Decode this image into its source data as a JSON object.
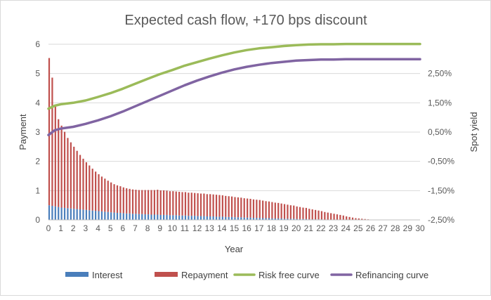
{
  "chart_data": {
    "type": "bar+line",
    "title": "Expected cash flow, +170 bps discount",
    "xlabel": "Year",
    "ylabel": "Payment",
    "y2label": "Spot yield",
    "xlim": [
      0,
      30
    ],
    "ylim": [
      0,
      6
    ],
    "y2lim": [
      "-2.5%",
      "3.5%"
    ],
    "x_ticks": [
      "0",
      "1",
      "2",
      "3",
      "4",
      "5",
      "6",
      "7",
      "8",
      "9",
      "10",
      "11",
      "12",
      "13",
      "14",
      "15",
      "16",
      "17",
      "18",
      "19",
      "20",
      "21",
      "22",
      "23",
      "24",
      "25",
      "26",
      "27",
      "28",
      "29",
      "30"
    ],
    "y_ticks": [
      "0",
      "1",
      "2",
      "3",
      "4",
      "5",
      "6"
    ],
    "y2_ticks": [
      "-2,50%",
      "-1,50%",
      "-0,50%",
      "0,50%",
      "1,50%",
      "2,50%"
    ],
    "bar_step_years": 0.25,
    "series_bars": [
      {
        "name": "Interest",
        "color": "#4a7ebb",
        "values": [
          0.5,
          0.48,
          0.46,
          0.44,
          0.42,
          0.41,
          0.4,
          0.39,
          0.38,
          0.37,
          0.36,
          0.35,
          0.34,
          0.33,
          0.32,
          0.31,
          0.3,
          0.29,
          0.28,
          0.27,
          0.26,
          0.25,
          0.24,
          0.24,
          0.23,
          0.22,
          0.22,
          0.21,
          0.21,
          0.2,
          0.2,
          0.19,
          0.19,
          0.18,
          0.18,
          0.18,
          0.17,
          0.17,
          0.17,
          0.16,
          0.16,
          0.16,
          0.15,
          0.15,
          0.15,
          0.14,
          0.14,
          0.14,
          0.13,
          0.13,
          0.13,
          0.12,
          0.12,
          0.12,
          0.11,
          0.11,
          0.11,
          0.1,
          0.1,
          0.1,
          0.09,
          0.09,
          0.09,
          0.08,
          0.08,
          0.08,
          0.07,
          0.07,
          0.07,
          0.06,
          0.06,
          0.06,
          0.05,
          0.05,
          0.05,
          0.05,
          0.04,
          0.04,
          0.04,
          0.04,
          0.03,
          0.03,
          0.03,
          0.03,
          0.02,
          0.02,
          0.02,
          0.02,
          0.02,
          0.01,
          0.01,
          0.01,
          0.01,
          0.01,
          0.01,
          0.01,
          0.0,
          0.0,
          0.0,
          0.0,
          0.0,
          0.0,
          0.0,
          0.0,
          0.0,
          0.0,
          0.0,
          0.0,
          0.0,
          0.0,
          0.0,
          0.0,
          0.0,
          0.0,
          0.0,
          0.0,
          0.0,
          0.0,
          0.0,
          0.0,
          0.0
        ]
      },
      {
        "name": "Repayment",
        "color": "#c0504d",
        "values": [
          5.03,
          4.38,
          3.44,
          3.0,
          2.8,
          2.6,
          2.4,
          2.26,
          2.12,
          1.99,
          1.86,
          1.74,
          1.63,
          1.53,
          1.43,
          1.34,
          1.26,
          1.19,
          1.13,
          1.07,
          1.02,
          0.97,
          0.94,
          0.91,
          0.88,
          0.86,
          0.84,
          0.83,
          0.82,
          0.82,
          0.82,
          0.83,
          0.83,
          0.84,
          0.84,
          0.85,
          0.84,
          0.84,
          0.83,
          0.82,
          0.82,
          0.81,
          0.81,
          0.8,
          0.8,
          0.79,
          0.79,
          0.78,
          0.78,
          0.77,
          0.77,
          0.76,
          0.76,
          0.75,
          0.75,
          0.74,
          0.73,
          0.72,
          0.71,
          0.7,
          0.69,
          0.68,
          0.67,
          0.66,
          0.65,
          0.64,
          0.63,
          0.62,
          0.61,
          0.6,
          0.58,
          0.57,
          0.56,
          0.54,
          0.53,
          0.51,
          0.5,
          0.48,
          0.46,
          0.45,
          0.43,
          0.41,
          0.39,
          0.38,
          0.36,
          0.34,
          0.32,
          0.3,
          0.28,
          0.26,
          0.24,
          0.22,
          0.2,
          0.18,
          0.16,
          0.14,
          0.12,
          0.1,
          0.08,
          0.06,
          0.05,
          0.04,
          0.03,
          0.02,
          0.01,
          0.01,
          0.01,
          0.0,
          0.0,
          0.0,
          0.0,
          0.0,
          0.0,
          0.0,
          0.0,
          0.0,
          0.0,
          0.0,
          0.0,
          0.0,
          0.0
        ]
      }
    ],
    "series_lines": [
      {
        "name": "Risk free curve",
        "color": "#9bbb59",
        "axis": "secondary",
        "points": [
          [
            0,
            1.3
          ],
          [
            0.5,
            1.4
          ],
          [
            1,
            1.45
          ],
          [
            2,
            1.5
          ],
          [
            3,
            1.58
          ],
          [
            4,
            1.7
          ],
          [
            5,
            1.83
          ],
          [
            6,
            1.98
          ],
          [
            7,
            2.15
          ],
          [
            8,
            2.32
          ],
          [
            9,
            2.48
          ],
          [
            10,
            2.62
          ],
          [
            11,
            2.77
          ],
          [
            12,
            2.89
          ],
          [
            13,
            3.01
          ],
          [
            14,
            3.12
          ],
          [
            15,
            3.22
          ],
          [
            16,
            3.3
          ],
          [
            17,
            3.36
          ],
          [
            18,
            3.4
          ],
          [
            19,
            3.44
          ],
          [
            20,
            3.47
          ],
          [
            21,
            3.49
          ],
          [
            22,
            3.5
          ],
          [
            23,
            3.5
          ],
          [
            24,
            3.51
          ],
          [
            25,
            3.51
          ],
          [
            26,
            3.51
          ],
          [
            27,
            3.51
          ],
          [
            28,
            3.51
          ],
          [
            29,
            3.51
          ],
          [
            30,
            3.51
          ]
        ]
      },
      {
        "name": "Refinancing curve",
        "color": "#8064a2",
        "axis": "secondary",
        "points": [
          [
            0,
            0.4
          ],
          [
            0.5,
            0.56
          ],
          [
            1,
            0.62
          ],
          [
            2,
            0.68
          ],
          [
            3,
            0.78
          ],
          [
            4,
            0.9
          ],
          [
            5,
            1.04
          ],
          [
            6,
            1.2
          ],
          [
            7,
            1.38
          ],
          [
            8,
            1.56
          ],
          [
            9,
            1.74
          ],
          [
            10,
            1.92
          ],
          [
            11,
            2.1
          ],
          [
            12,
            2.26
          ],
          [
            13,
            2.4
          ],
          [
            14,
            2.53
          ],
          [
            15,
            2.64
          ],
          [
            16,
            2.73
          ],
          [
            17,
            2.8
          ],
          [
            18,
            2.86
          ],
          [
            19,
            2.9
          ],
          [
            20,
            2.94
          ],
          [
            21,
            2.96
          ],
          [
            22,
            2.98
          ],
          [
            23,
            2.98
          ],
          [
            24,
            2.99
          ],
          [
            25,
            2.99
          ],
          [
            26,
            2.99
          ],
          [
            27,
            2.99
          ],
          [
            28,
            2.99
          ],
          [
            29,
            2.99
          ],
          [
            30,
            2.99
          ]
        ]
      }
    ],
    "legend": {
      "placement": "bottom",
      "items": [
        "Interest",
        "Repayment",
        "Risk free curve",
        "Refinancing curve"
      ]
    },
    "grid": "horizontal"
  }
}
